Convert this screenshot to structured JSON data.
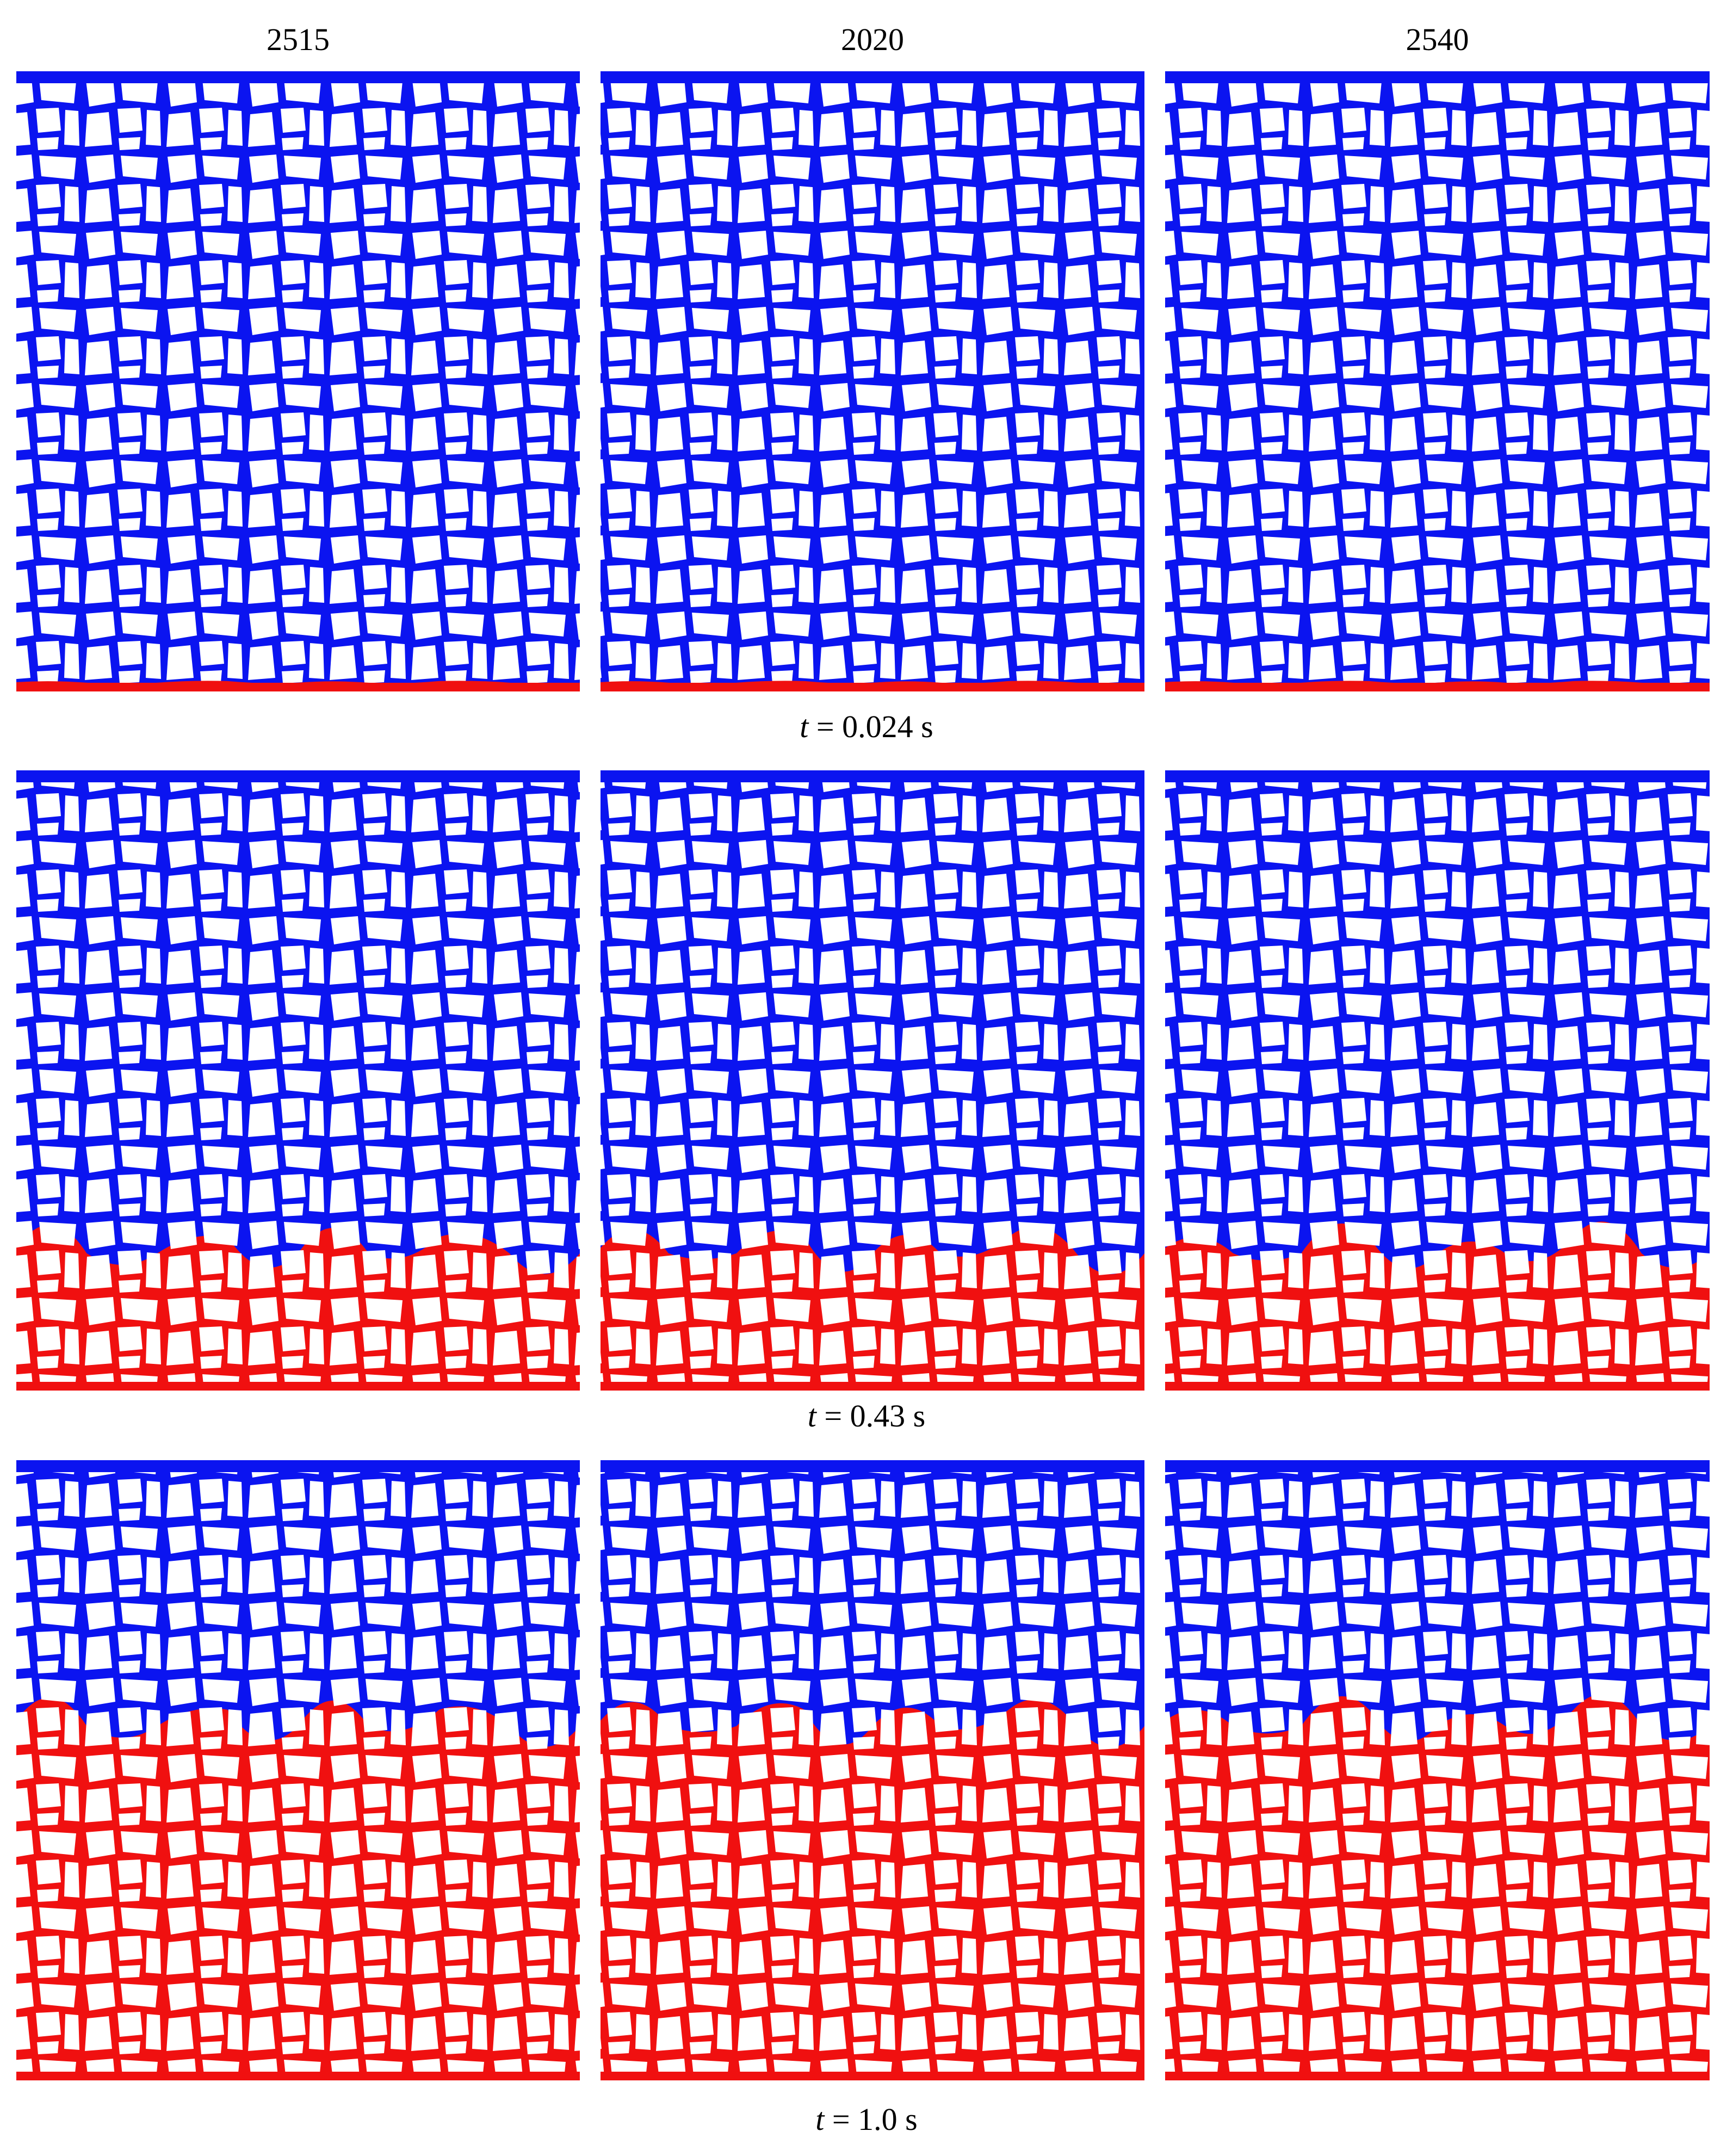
{
  "figure": {
    "column_headers": [
      "2515",
      "2020",
      "2540"
    ],
    "row_captions": [
      {
        "variable": "t",
        "text": "= 0.024 s"
      },
      {
        "variable": "t",
        "text": "= 0.43 s"
      },
      {
        "variable": "t",
        "text": "= 1.0 s"
      }
    ]
  }
}
